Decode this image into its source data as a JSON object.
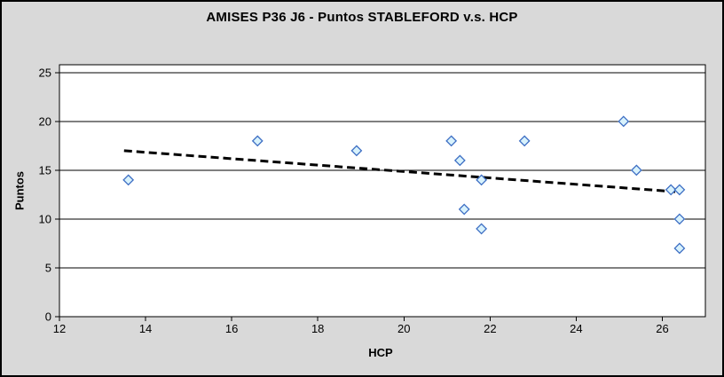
{
  "window": {
    "background": "#d9d9d9",
    "frame_border": "#000000"
  },
  "chart_data": {
    "type": "scatter",
    "title": "AMISES P36 J6 - Puntos STABLEFORD v.s. HCP",
    "xlabel": "HCP",
    "ylabel": "Puntos",
    "xlim": [
      12,
      27
    ],
    "ylim": [
      0,
      25.8
    ],
    "xticks": [
      12,
      14,
      16,
      18,
      20,
      22,
      24,
      26
    ],
    "yticks": [
      0,
      5,
      10,
      15,
      20,
      25
    ],
    "grid": "horizontal-only",
    "legend": "none",
    "series": [
      {
        "name": "Puntos STABLEFORD",
        "marker": "diamond",
        "points": [
          {
            "x": 13.6,
            "y": 14
          },
          {
            "x": 16.6,
            "y": 18
          },
          {
            "x": 18.9,
            "y": 17
          },
          {
            "x": 21.1,
            "y": 18
          },
          {
            "x": 21.3,
            "y": 16
          },
          {
            "x": 21.4,
            "y": 11
          },
          {
            "x": 21.8,
            "y": 14
          },
          {
            "x": 21.8,
            "y": 9
          },
          {
            "x": 22.8,
            "y": 18
          },
          {
            "x": 25.1,
            "y": 20
          },
          {
            "x": 25.4,
            "y": 15
          },
          {
            "x": 26.2,
            "y": 13
          },
          {
            "x": 26.4,
            "y": 13
          },
          {
            "x": 26.4,
            "y": 10
          },
          {
            "x": 26.4,
            "y": 7
          }
        ]
      }
    ],
    "trendline": {
      "style": "dashed",
      "x1": 13.5,
      "y1": 17.0,
      "x2": 26.3,
      "y2": 12.8
    },
    "colors": {
      "plot_background": "#ffffff",
      "marker_fill": "#d8f2fc",
      "marker_stroke": "#3e6fc4",
      "trendline": "#000000",
      "gridline": "#000000",
      "axis": "#000000",
      "text": "#000000"
    }
  }
}
